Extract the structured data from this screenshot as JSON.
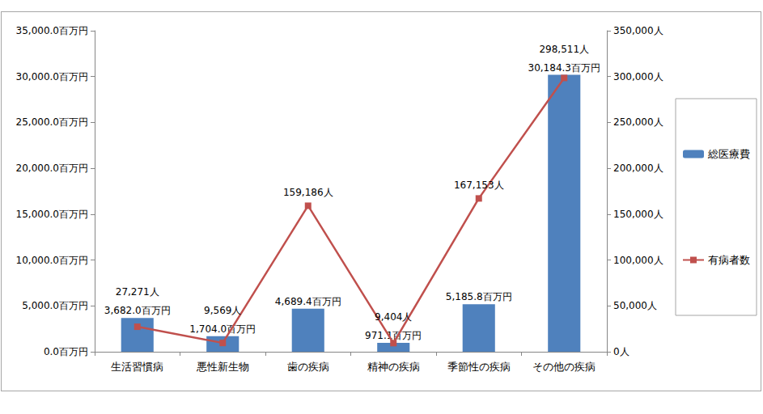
{
  "chart_data": {
    "type": "bar",
    "categories": [
      "生活習慣病",
      "悪性新生物",
      "歯の疾病",
      "精神の疾病",
      "季節性の疾病",
      "その他の疾病"
    ],
    "series": [
      {
        "name": "総医療費",
        "type": "bar",
        "color": "#4f81bd",
        "values": [
          3682.0,
          1704.0,
          4689.4,
          971.1,
          5185.8,
          30184.3
        ],
        "value_labels": [
          "3,682.0百万円",
          "1,704.0百万円",
          "4,689.4百万円",
          "971.1百万円",
          "5,185.8百万円",
          "30,184.3百万円"
        ]
      },
      {
        "name": "有病者数",
        "type": "line",
        "color": "#c0504d",
        "marker": "square",
        "line_style": "solid",
        "axis": "y2",
        "values": [
          27271,
          9569,
          159186,
          9404,
          167153,
          298511
        ],
        "value_labels": [
          "27,271人",
          "9,569人",
          "159,186人",
          "9,404人",
          "167,153人",
          "298,511人"
        ]
      }
    ],
    "ylim": [
      0,
      35000
    ],
    "yticks": [
      {
        "value": 0,
        "label": "0.0百万円"
      },
      {
        "value": 5000,
        "label": "5,000.0百万円"
      },
      {
        "value": 10000,
        "label": "10,000.0百万円"
      },
      {
        "value": 15000,
        "label": "15,000.0百万円"
      },
      {
        "value": 20000,
        "label": "20,000.0百万円"
      },
      {
        "value": 25000,
        "label": "25,000.0百万円"
      },
      {
        "value": 30000,
        "label": "30,000.0百万円"
      },
      {
        "value": 35000,
        "label": "35,000.0百万円"
      }
    ],
    "y2lim": [
      0,
      350000
    ],
    "y2ticks": [
      {
        "value": 0,
        "label": "0人"
      },
      {
        "value": 50000,
        "label": "50,000人"
      },
      {
        "value": 100000,
        "label": "100,000人"
      },
      {
        "value": 150000,
        "label": "150,000人"
      },
      {
        "value": 200000,
        "label": "200,000人"
      },
      {
        "value": 250000,
        "label": "250,000人"
      },
      {
        "value": 300000,
        "label": "300,000人"
      },
      {
        "value": 350000,
        "label": "350,000人"
      }
    ],
    "grid": false,
    "legend": "right",
    "data_labels": true
  }
}
